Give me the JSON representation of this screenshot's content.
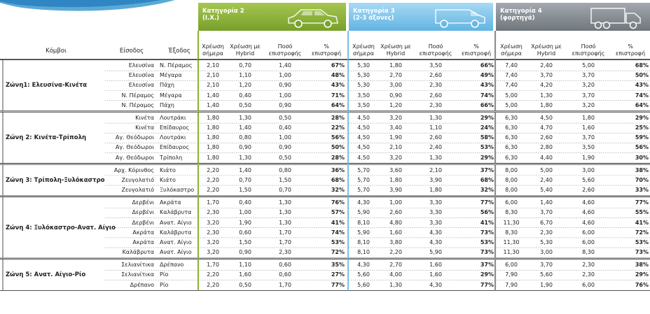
{
  "categories": [
    {
      "line1": "Κατηγορία 2",
      "line2": "(Ι.Χ.)",
      "icon": "car-icon"
    },
    {
      "line1": "Κατηγορία 3",
      "line2": "(2-3 άξονες)",
      "icon": "van-icon"
    },
    {
      "line1": "Κατηγορία 4",
      "line2": "(φορτηγά)",
      "icon": "truck-icon"
    }
  ],
  "headers": {
    "nodes": "Κόμβοι",
    "entry": "Είσοδος",
    "exit": "Έξοδος",
    "charge_today": "Χρέωση σήμερα",
    "charge_hybrid": "Χρέωση με Hybrid",
    "refund_amount": "Ποσό επιστροφής",
    "refund_pct": "% επιστροφή"
  },
  "colors": {
    "cat2": "#8db43c",
    "cat3": "#7ec4ea",
    "cat4": "#8a9096"
  },
  "zones": [
    {
      "name": "Ζώνη1: Ελευσίνα-Κινέτα",
      "rows": [
        {
          "entry": "Ελευσίνα",
          "exit": "Ν. Πέραμος",
          "c2": [
            "2,10",
            "0,70",
            "1,40",
            "67%"
          ],
          "c3": [
            "5,30",
            "1,80",
            "3,50",
            "66%"
          ],
          "c4": [
            "7,40",
            "2,40",
            "5,00",
            "68%"
          ]
        },
        {
          "entry": "Ελευσίνα",
          "exit": "Μέγαρα",
          "c2": [
            "2,10",
            "1,10",
            "1,00",
            "48%"
          ],
          "c3": [
            "5,30",
            "2,70",
            "2,60",
            "49%"
          ],
          "c4": [
            "7,40",
            "3,70",
            "3,70",
            "50%"
          ]
        },
        {
          "entry": "Ελευσίνα",
          "exit": "Πάχη",
          "c2": [
            "2,10",
            "1,20",
            "0,90",
            "43%"
          ],
          "c3": [
            "5,30",
            "3,00",
            "2,30",
            "43%"
          ],
          "c4": [
            "7,40",
            "4,20",
            "3,20",
            "43%"
          ]
        },
        {
          "entry": "Ν. Πέραμος",
          "exit": "Μέγαρα",
          "c2": [
            "1,40",
            "0,40",
            "1,00",
            "71%"
          ],
          "c3": [
            "3,50",
            "0,90",
            "2,60",
            "74%"
          ],
          "c4": [
            "5,00",
            "1,30",
            "3,70",
            "74%"
          ]
        },
        {
          "entry": "Ν. Πέραμος",
          "exit": "Πάχη",
          "c2": [
            "1,40",
            "0,50",
            "0,90",
            "64%"
          ],
          "c3": [
            "3,50",
            "1,20",
            "2,30",
            "66%"
          ],
          "c4": [
            "5,00",
            "1,80",
            "3,20",
            "64%"
          ]
        }
      ]
    },
    {
      "name": "Ζώνη 2: Κινέτα-Τρίπολη",
      "rows": [
        {
          "entry": "Κινέτα",
          "exit": "Λουτράκι",
          "c2": [
            "1,80",
            "1,30",
            "0,50",
            "28%"
          ],
          "c3": [
            "4,50",
            "3,20",
            "1,30",
            "29%"
          ],
          "c4": [
            "6,30",
            "4,50",
            "1,80",
            "29%"
          ]
        },
        {
          "entry": "Κινέτα",
          "exit": "Επίδαυρος",
          "c2": [
            "1,80",
            "1,40",
            "0,40",
            "22%"
          ],
          "c3": [
            "4,50",
            "3,40",
            "1,10",
            "24%"
          ],
          "c4": [
            "6,30",
            "4,70",
            "1,60",
            "25%"
          ]
        },
        {
          "entry": "Αγ. Θεόδωροι",
          "exit": "Λουτράκι",
          "c2": [
            "1,80",
            "0,80",
            "1,00",
            "56%"
          ],
          "c3": [
            "4,50",
            "1,90",
            "2,60",
            "58%"
          ],
          "c4": [
            "6,30",
            "2,60",
            "3,70",
            "59%"
          ]
        },
        {
          "entry": "Αγ. Θεόδωροι",
          "exit": "Επίδαυρος",
          "c2": [
            "1,80",
            "0,90",
            "0,90",
            "50%"
          ],
          "c3": [
            "4,50",
            "2,10",
            "2,40",
            "53%"
          ],
          "c4": [
            "6,30",
            "2,80",
            "3,50",
            "56%"
          ]
        },
        {
          "entry": "Αγ. Θεόδωροι",
          "exit": "Τρίπολη",
          "c2": [
            "1,80",
            "1,30",
            "0,50",
            "28%"
          ],
          "c3": [
            "4,50",
            "3,20",
            "1,30",
            "29%"
          ],
          "c4": [
            "6,30",
            "4,40",
            "1,90",
            "30%"
          ]
        }
      ]
    },
    {
      "name": "Ζώνη 3: Τρίπολη-Ξυλόκαστρο",
      "rows": [
        {
          "entry": "Αρχ. Κόρινθος",
          "exit": "Κιάτο",
          "c2": [
            "2,20",
            "1,40",
            "0,80",
            "36%"
          ],
          "c3": [
            "5,70",
            "3,60",
            "2,10",
            "37%"
          ],
          "c4": [
            "8,00",
            "5,00",
            "3,00",
            "38%"
          ]
        },
        {
          "entry": "Ζευγολατιό",
          "exit": "Κιάτο",
          "c2": [
            "2,20",
            "0,70",
            "1,50",
            "68%"
          ],
          "c3": [
            "5,70",
            "1,80",
            "3,90",
            "68%"
          ],
          "c4": [
            "8,00",
            "2,40",
            "5,60",
            "70%"
          ]
        },
        {
          "entry": "Ζευγολατιό",
          "exit": "Ξυλόκαστρο",
          "c2": [
            "2,20",
            "1,50",
            "0,70",
            "32%"
          ],
          "c3": [
            "5,70",
            "3,90",
            "1,80",
            "32%"
          ],
          "c4": [
            "8,00",
            "5,40",
            "2,60",
            "33%"
          ]
        }
      ]
    },
    {
      "name": "Ζώνη 4: Ξυλόκαστρο-Ανατ. Αίγιο",
      "rows": [
        {
          "entry": "Δερβένι",
          "exit": "Ακράτα",
          "c2": [
            "1,70",
            "0,40",
            "1,30",
            "76%"
          ],
          "c3": [
            "4,30",
            "1,00",
            "3,30",
            "77%"
          ],
          "c4": [
            "6,00",
            "1,40",
            "4,60",
            "77%"
          ]
        },
        {
          "entry": "Δερβένι",
          "exit": "Καλάβρυτα",
          "c2": [
            "2,30",
            "1,00",
            "1,30",
            "57%"
          ],
          "c3": [
            "5,90",
            "2,60",
            "3,30",
            "56%"
          ],
          "c4": [
            "8,30",
            "3,70",
            "4,60",
            "55%"
          ]
        },
        {
          "entry": "Δερβένι",
          "exit": "Ανατ. Αίγιο",
          "c2": [
            "3,20",
            "1,90",
            "1,30",
            "41%"
          ],
          "c3": [
            "8,10",
            "4,80",
            "3,30",
            "41%"
          ],
          "c4": [
            "11,30",
            "6,70",
            "4,60",
            "41%"
          ]
        },
        {
          "entry": "Ακράτα",
          "exit": "Καλάβρυτα",
          "c2": [
            "2,30",
            "0,60",
            "1,70",
            "74%"
          ],
          "c3": [
            "5,90",
            "1,60",
            "4,30",
            "73%"
          ],
          "c4": [
            "8,30",
            "2,30",
            "6,00",
            "72%"
          ]
        },
        {
          "entry": "Ακράτα",
          "exit": "Ανατ. Αίγιο",
          "c2": [
            "3,20",
            "1,50",
            "1,70",
            "53%"
          ],
          "c3": [
            "8,10",
            "3,80",
            "4,30",
            "53%"
          ],
          "c4": [
            "11,30",
            "5,30",
            "6,00",
            "53%"
          ]
        },
        {
          "entry": "Καλάβρυτα",
          "exit": "Ανατ. Αίγιο",
          "c2": [
            "3,20",
            "0,90",
            "2,30",
            "72%"
          ],
          "c3": [
            "8,10",
            "2,20",
            "5,90",
            "73%"
          ],
          "c4": [
            "11,30",
            "3,00",
            "8,30",
            "73%"
          ]
        }
      ]
    },
    {
      "name": "Ζώνη 5: Ανατ. Αίγιο-Ρίο",
      "rows": [
        {
          "entry": "Σελιανίτικα",
          "exit": "Δρέπανο",
          "c2": [
            "1,70",
            "1,10",
            "0,60",
            "35%"
          ],
          "c3": [
            "4,30",
            "2,70",
            "1,60",
            "37%"
          ],
          "c4": [
            "6,00",
            "3,70",
            "2,30",
            "38%"
          ]
        },
        {
          "entry": "Σελιανίτικα",
          "exit": "Ρίο",
          "c2": [
            "2,20",
            "1,60",
            "0,60",
            "27%"
          ],
          "c3": [
            "5,60",
            "4,00",
            "1,60",
            "29%"
          ],
          "c4": [
            "7,90",
            "5,60",
            "2,30",
            "29%"
          ]
        },
        {
          "entry": "Δρέπανο",
          "exit": "Ρίο",
          "c2": [
            "2,20",
            "0,50",
            "1,70",
            "77%"
          ],
          "c3": [
            "5,60",
            "1,30",
            "4,30",
            "77%"
          ],
          "c4": [
            "7,90",
            "1,90",
            "6,00",
            "76%"
          ]
        }
      ]
    }
  ]
}
